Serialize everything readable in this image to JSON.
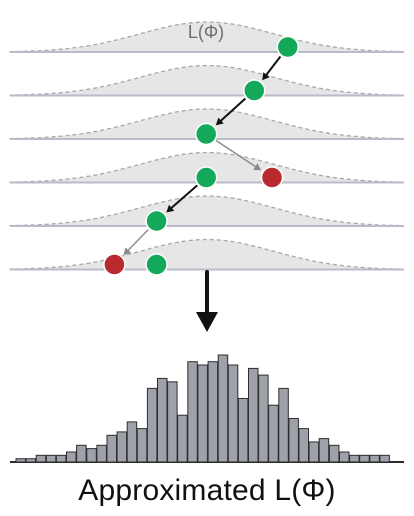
{
  "labels": {
    "likelihood_label": "L(Φ)",
    "approximated_label": "Approximated L(Φ)"
  },
  "colors": {
    "accepted_point": "#14a85a",
    "rejected_point": "#b92a2f",
    "curve_fill": "#e6e6e6",
    "curve_stroke": "#a8a8a8",
    "baseline": "#b8bcc8",
    "histogram_bar": "#9ea1aa",
    "histogram_stroke": "#2e2e2e",
    "arrow": "#111111"
  },
  "icons": {
    "down_arrow": "down-arrow-icon"
  },
  "diagram": {
    "rows": 6,
    "walk_points": [
      {
        "row": 0,
        "pos": 0.705,
        "status": "accepted"
      },
      {
        "row": 1,
        "pos": 0.62,
        "status": "accepted"
      },
      {
        "row": 2,
        "pos": 0.498,
        "status": "accepted"
      },
      {
        "row": 3,
        "pos": 0.498,
        "status": "accepted"
      },
      {
        "row": 3,
        "pos": 0.665,
        "status": "rejected"
      },
      {
        "row": 4,
        "pos": 0.372,
        "status": "accepted"
      },
      {
        "row": 5,
        "pos": 0.372,
        "status": "accepted"
      },
      {
        "row": 5,
        "pos": 0.265,
        "status": "rejected"
      }
    ],
    "transitions": [
      {
        "from": 0,
        "to": 1,
        "kind": "accepted"
      },
      {
        "from": 1,
        "to": 2,
        "kind": "accepted"
      },
      {
        "from": 2,
        "to": 4,
        "kind": "proposal"
      },
      {
        "from": 3,
        "to": 5,
        "kind": "accepted"
      },
      {
        "from": 5,
        "to": 7,
        "kind": "proposal"
      }
    ]
  },
  "chart_data": {
    "type": "bar",
    "title": "",
    "xlabel": "Approximated L(Φ)",
    "ylabel": "",
    "values": [
      1,
      1,
      2,
      2,
      2,
      3,
      5,
      4,
      5,
      8,
      9,
      12,
      10,
      22,
      25,
      24,
      14,
      30,
      29,
      30,
      32,
      29,
      19,
      28,
      26,
      17,
      22,
      13,
      10,
      6,
      7,
      5,
      3,
      2,
      2,
      2,
      2
    ],
    "ylim": [
      0,
      32
    ]
  }
}
